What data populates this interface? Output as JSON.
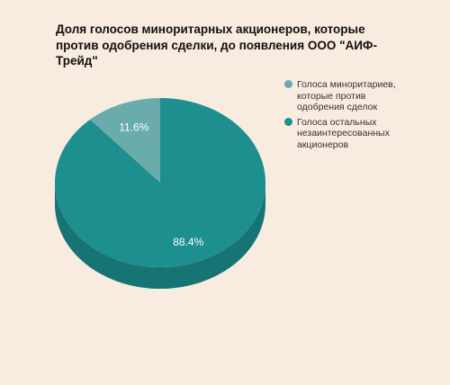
{
  "chart_data": {
    "type": "pie",
    "title": "Доля голосов миноритарных акционеров, которые против одобрения сделки, до появления ООО \"АИФ-Трейд\"",
    "slices": [
      {
        "name": "Голоса миноритариев, которые против одобрения сделок",
        "value": 11.6,
        "label": "11.6%",
        "color": "#6aabab",
        "side_color": "#4f8888"
      },
      {
        "name": "Голоса остальных незаинтересованных акционеров",
        "value": 88.4,
        "label": "88.4%",
        "color": "#1d8f8f",
        "side_color": "#177474"
      }
    ],
    "legend_position": "right",
    "style": "3d"
  }
}
